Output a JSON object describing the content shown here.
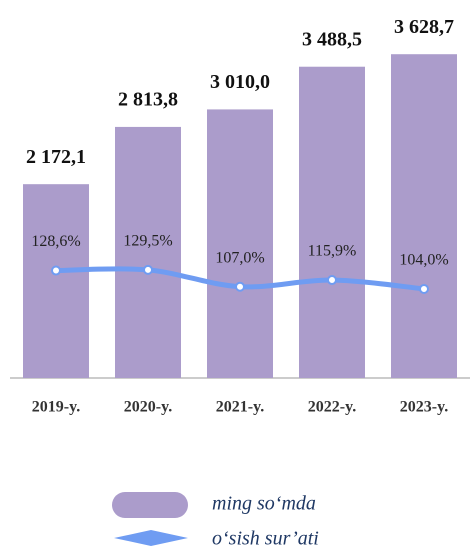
{
  "chart_data": {
    "type": "bar_line",
    "categories": [
      "2019-y.",
      "2020-y.",
      "2021-y.",
      "2022-y.",
      "2023-y."
    ],
    "series": [
      {
        "name": "ming so‘mda",
        "color": "#ab9ccb",
        "values": [
          2172.1,
          2813.8,
          3010.0,
          3488.5,
          3628.7
        ],
        "value_labels": [
          "2 172,1",
          "2 813,8",
          "3 010,0",
          "3 488,5",
          "3 628,7"
        ]
      },
      {
        "name": "o‘sish sur’ati",
        "color": "#6f9cf2",
        "axis": "y2",
        "values": [
          128.6,
          129.5,
          107.0,
          115.9,
          104.0
        ],
        "value_labels": [
          "128,6%",
          "129,5%",
          "107,0%",
          "115,9%",
          "104,0%"
        ]
      }
    ],
    "ylim": [
      0,
      3900
    ],
    "y2lim": [
      -15,
      450
    ]
  }
}
